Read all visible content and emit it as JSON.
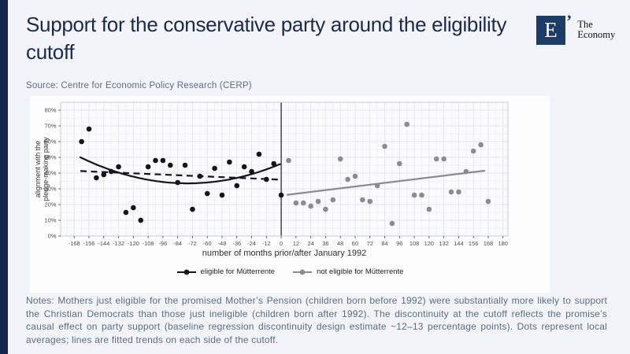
{
  "page": {
    "title": "Support for the conservative party around the eligibility cutoff",
    "source": "Source: Centre for Economic Policy Research (CERP)",
    "notes": "Notes: Mothers just eligible for the promised Mother’s Pension (children born before 1992) were substantially more likely to support the Christian Democrats than those just ineligible (children born after 1992). The discontinuity at the cutoff reflects the promise’s causal effect on party support (baseline regression discontinuity design estimate ~12–13 percentage points). Dots represent local averages; lines are fitted trends on each side of the cutoff."
  },
  "logo": {
    "letter": "E",
    "tick": "’",
    "name_line1": "The",
    "name_line2": "Economy"
  },
  "chart_data": {
    "type": "scatter",
    "title": "",
    "xlabel": "number of months prior/after January 1992",
    "ylabel": "alignment with the pledge-making party",
    "ylabel_lines": [
      "alignment with the",
      "pledge-making party"
    ],
    "xlim": [
      -179,
      184
    ],
    "ylim": [
      0,
      85
    ],
    "x_ticks": [
      -168,
      -156,
      -144,
      -132,
      -120,
      -108,
      -96,
      -84,
      -72,
      -60,
      -48,
      -36,
      -24,
      -12,
      0,
      12,
      24,
      36,
      48,
      60,
      72,
      84,
      96,
      108,
      120,
      132,
      144,
      156,
      168,
      180
    ],
    "y_ticks": [
      0,
      10,
      20,
      30,
      40,
      50,
      60,
      70,
      80
    ],
    "y_tick_suffix": "%",
    "grid": true,
    "legend_position": "bottom",
    "cutoff_x": 0,
    "colors": {
      "eligible": "#161616",
      "not_eligible": "#8c8c8c",
      "cutoff_line": "#3a3a3a",
      "grid_major": "#e4e6ec",
      "grid_minor": "#eff0f5",
      "panel_border": "#c9ccd4",
      "panel_bg": "#fbfbfd"
    },
    "legend": [
      "eligible for Mütterrente",
      "not eligible for Mütterrente"
    ],
    "series": [
      {
        "name": "eligible for Mütterrente",
        "color_key": "eligible",
        "points": [
          [
            -162,
            60
          ],
          [
            -156,
            68
          ],
          [
            -150,
            37
          ],
          [
            -144,
            39
          ],
          [
            -138,
            41
          ],
          [
            -132,
            44
          ],
          [
            -126,
            15
          ],
          [
            -120,
            18
          ],
          [
            -114,
            10
          ],
          [
            -108,
            44
          ],
          [
            -102,
            48
          ],
          [
            -96,
            48
          ],
          [
            -90,
            45
          ],
          [
            -84,
            34
          ],
          [
            -78,
            45
          ],
          [
            -72,
            17
          ],
          [
            -66,
            38
          ],
          [
            -60,
            27
          ],
          [
            -54,
            43
          ],
          [
            -48,
            26
          ],
          [
            -42,
            47
          ],
          [
            -36,
            32
          ],
          [
            -30,
            44
          ],
          [
            -24,
            41
          ],
          [
            -18,
            52
          ],
          [
            -12,
            36
          ],
          [
            -6,
            46
          ],
          [
            0,
            26
          ]
        ],
        "fit_quadratic": {
          "c0": 46,
          "c1": 0.3304,
          "c2": 0.002178,
          "x_range": [
            -163,
            -1
          ]
        },
        "fit_dashed_line": {
          "x1": -163,
          "y1": 41.3,
          "x2": 0,
          "y2": 35.8
        }
      },
      {
        "name": "not eligible for Mütterrente",
        "color_key": "not_eligible",
        "points": [
          [
            6,
            48
          ],
          [
            12,
            21
          ],
          [
            18,
            21
          ],
          [
            24,
            19
          ],
          [
            30,
            22
          ],
          [
            36,
            17
          ],
          [
            42,
            23
          ],
          [
            48,
            49
          ],
          [
            54,
            36
          ],
          [
            60,
            38
          ],
          [
            66,
            23
          ],
          [
            72,
            22
          ],
          [
            78,
            32
          ],
          [
            84,
            57
          ],
          [
            90,
            8
          ],
          [
            96,
            46
          ],
          [
            102,
            71
          ],
          [
            108,
            26
          ],
          [
            114,
            26
          ],
          [
            120,
            17
          ],
          [
            126,
            49
          ],
          [
            132,
            49
          ],
          [
            138,
            28
          ],
          [
            144,
            28
          ],
          [
            150,
            41
          ],
          [
            156,
            54
          ],
          [
            162,
            58
          ],
          [
            168,
            22
          ]
        ],
        "fit_line": {
          "x1": 5,
          "y1": 26.2,
          "x2": 165,
          "y2": 41.5
        }
      }
    ]
  }
}
